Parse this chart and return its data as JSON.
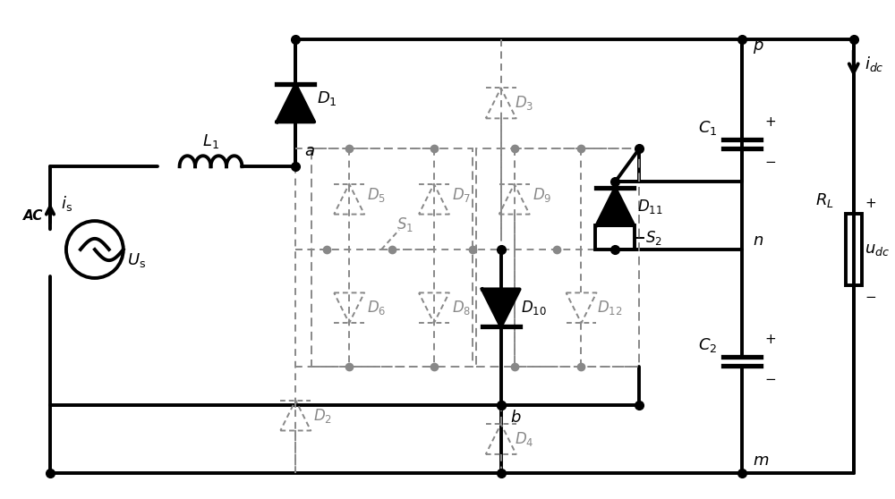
{
  "bg_color": "#ffffff",
  "lc": "#000000",
  "dc": "#888888",
  "lw_main": 2.8,
  "lw_thin": 1.4,
  "fig_w": 10.0,
  "fig_h": 5.58,
  "xlim": [
    0,
    10
  ],
  "ylim": [
    0,
    5.58
  ]
}
